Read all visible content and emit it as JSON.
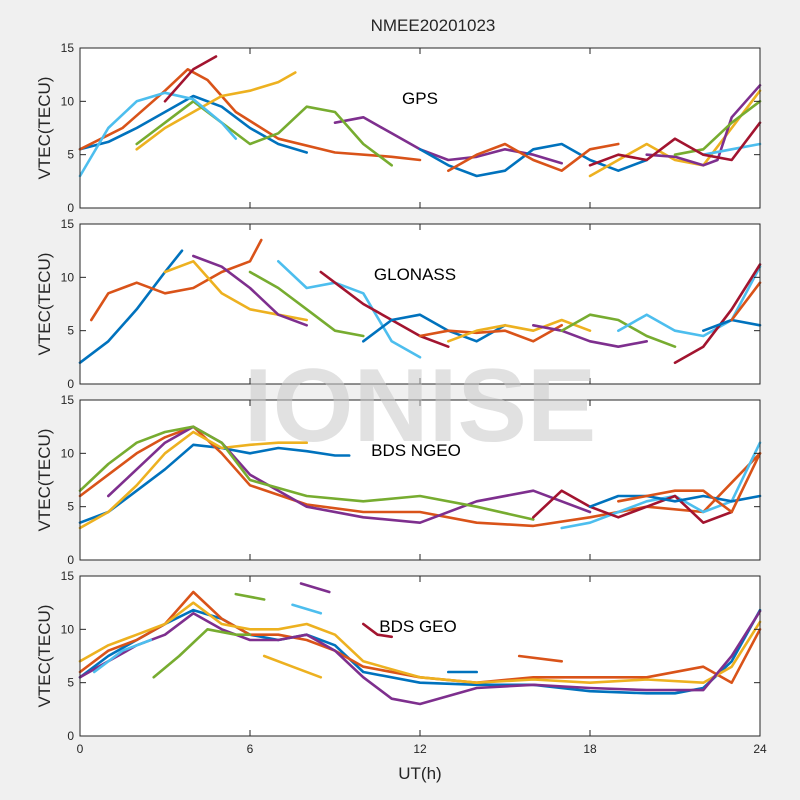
{
  "figure": {
    "title": "NMEE20201023",
    "watermark": "IONISE",
    "xlabel": "UT(h)",
    "colors": [
      "#0072BD",
      "#D95319",
      "#EDB120",
      "#7E2F8E",
      "#77AC30",
      "#4DBEEE",
      "#A2142F"
    ]
  },
  "chart_data": [
    {
      "type": "line",
      "title": "GPS",
      "xlabel": "UT(h)",
      "ylabel": "VTEC(TECU)",
      "xlim": [
        0,
        24
      ],
      "ylim": [
        0,
        15
      ],
      "xticks": [
        0,
        6,
        12,
        18,
        24
      ],
      "yticks": [
        0,
        5,
        10,
        15
      ],
      "series": [
        {
          "x": [
            0,
            1,
            2,
            3,
            4,
            5,
            6,
            7,
            8
          ],
          "y": [
            5.5,
            6.2,
            7.5,
            9.0,
            10.5,
            9.5,
            7.5,
            6.0,
            5.2
          ]
        },
        {
          "x": [
            0,
            1.5,
            3,
            3.8,
            4.5,
            5.5,
            7,
            9,
            11,
            12
          ],
          "y": [
            5.5,
            7.5,
            11.0,
            13.0,
            12.0,
            9.0,
            6.5,
            5.2,
            4.8,
            4.5
          ]
        },
        {
          "x": [
            2,
            3,
            4,
            5,
            6,
            7,
            7.6
          ],
          "y": [
            5.5,
            7.5,
            9.0,
            10.5,
            11.0,
            11.8,
            12.7
          ]
        },
        {
          "x": [
            9,
            10,
            11,
            12,
            13,
            14,
            15,
            16,
            17
          ],
          "y": [
            8.0,
            8.5,
            7.0,
            5.5,
            4.5,
            4.8,
            5.5,
            5.0,
            4.2
          ]
        },
        {
          "x": [
            2,
            3,
            4,
            5,
            6,
            7,
            8,
            9,
            10,
            11
          ],
          "y": [
            6.0,
            8.0,
            10.0,
            8.0,
            6.0,
            7.0,
            9.5,
            9.0,
            6.0,
            4.0
          ]
        },
        {
          "x": [
            0,
            1,
            2,
            3,
            4,
            5,
            5.5
          ],
          "y": [
            3.0,
            7.5,
            10.0,
            10.8,
            10.2,
            8.0,
            6.5
          ]
        },
        {
          "x": [
            3,
            4,
            4.8
          ],
          "y": [
            10.0,
            13.0,
            14.2
          ]
        },
        {
          "x": [
            12,
            13,
            14,
            15,
            16,
            17,
            18,
            19,
            20
          ],
          "y": [
            5.5,
            4.0,
            3.0,
            3.5,
            5.5,
            6.0,
            4.5,
            3.5,
            4.5
          ]
        },
        {
          "x": [
            13,
            14,
            15,
            16,
            17,
            18,
            19
          ],
          "y": [
            3.5,
            5.0,
            6.0,
            4.5,
            3.5,
            5.5,
            6.0
          ]
        },
        {
          "x": [
            18,
            19,
            20,
            21,
            22,
            23,
            24
          ],
          "y": [
            3.0,
            4.5,
            6.0,
            4.5,
            4.0,
            7.5,
            11.0
          ]
        },
        {
          "x": [
            20,
            21,
            22,
            22.5,
            23,
            24
          ],
          "y": [
            5.0,
            4.8,
            4.0,
            4.5,
            8.5,
            11.5
          ]
        },
        {
          "x": [
            21,
            22,
            23,
            24
          ],
          "y": [
            5.0,
            5.5,
            8.0,
            10.0
          ]
        },
        {
          "x": [
            22,
            23,
            24
          ],
          "y": [
            5.0,
            5.5,
            6.0
          ]
        },
        {
          "x": [
            18,
            19,
            20,
            21,
            22,
            23,
            24
          ],
          "y": [
            4.0,
            5.0,
            4.5,
            6.5,
            5.0,
            4.5,
            8.0
          ]
        }
      ]
    },
    {
      "type": "line",
      "title": "GLONASS",
      "xlabel": "UT(h)",
      "ylabel": "VTEC(TECU)",
      "xlim": [
        0,
        24
      ],
      "ylim": [
        0,
        15
      ],
      "xticks": [
        0,
        6,
        12,
        18,
        24
      ],
      "yticks": [
        0,
        5,
        10,
        15
      ],
      "series": [
        {
          "x": [
            0,
            1,
            2,
            3,
            3.6
          ],
          "y": [
            2.0,
            4.0,
            7.0,
            10.5,
            12.5
          ]
        },
        {
          "x": [
            0.4,
            1,
            2,
            3,
            4,
            5,
            6,
            6.4
          ],
          "y": [
            6.0,
            8.5,
            9.5,
            8.5,
            9.0,
            10.5,
            11.5,
            13.5
          ]
        },
        {
          "x": [
            3,
            4,
            5,
            6,
            7,
            8
          ],
          "y": [
            10.5,
            11.5,
            8.5,
            7.0,
            6.5,
            6.0
          ]
        },
        {
          "x": [
            4,
            5,
            6,
            7,
            8
          ],
          "y": [
            12.0,
            11.0,
            9.0,
            6.5,
            5.5
          ]
        },
        {
          "x": [
            6,
            7,
            8,
            9,
            10
          ],
          "y": [
            10.5,
            9.0,
            7.0,
            5.0,
            4.5
          ]
        },
        {
          "x": [
            7,
            8,
            9,
            10,
            11,
            12
          ],
          "y": [
            11.5,
            9.0,
            9.5,
            8.5,
            4.0,
            2.5
          ]
        },
        {
          "x": [
            8.5,
            9,
            10,
            11,
            12,
            13
          ],
          "y": [
            10.5,
            9.5,
            7.5,
            6.0,
            4.5,
            3.5
          ]
        },
        {
          "x": [
            10,
            11,
            12,
            13,
            14,
            15
          ],
          "y": [
            4.0,
            6.0,
            6.5,
            5.0,
            4.0,
            5.5
          ]
        },
        {
          "x": [
            12,
            13,
            14,
            15,
            16,
            17
          ],
          "y": [
            4.5,
            5.0,
            4.8,
            5.0,
            4.0,
            5.5
          ]
        },
        {
          "x": [
            13,
            14,
            15,
            16,
            17,
            18
          ],
          "y": [
            4.0,
            5.0,
            5.5,
            5.0,
            6.0,
            5.0
          ]
        },
        {
          "x": [
            16,
            17,
            18,
            19,
            20
          ],
          "y": [
            5.5,
            5.0,
            4.0,
            3.5,
            4.0
          ]
        },
        {
          "x": [
            17,
            18,
            19,
            20,
            21
          ],
          "y": [
            5.0,
            6.5,
            6.0,
            4.5,
            3.5
          ]
        },
        {
          "x": [
            19,
            20,
            21,
            22,
            23,
            24
          ],
          "y": [
            5.0,
            6.5,
            5.0,
            4.5,
            6.0,
            11.0
          ]
        },
        {
          "x": [
            21,
            22,
            23,
            24
          ],
          "y": [
            2.0,
            3.5,
            7.0,
            11.2
          ]
        },
        {
          "x": [
            22,
            23,
            24
          ],
          "y": [
            5.0,
            6.0,
            5.5
          ]
        },
        {
          "x": [
            23,
            24
          ],
          "y": [
            6.0,
            9.5
          ]
        }
      ]
    },
    {
      "type": "line",
      "title": "BDS NGEO",
      "xlabel": "UT(h)",
      "ylabel": "VTEC(TECU)",
      "xlim": [
        0,
        24
      ],
      "ylim": [
        0,
        15
      ],
      "xticks": [
        0,
        6,
        12,
        18,
        24
      ],
      "yticks": [
        0,
        5,
        10,
        15
      ],
      "series": [
        {
          "x": [
            0,
            1,
            2,
            3,
            4,
            5,
            6,
            7,
            8,
            9,
            9.5
          ],
          "y": [
            3.5,
            4.5,
            6.5,
            8.5,
            10.8,
            10.5,
            10.0,
            10.5,
            10.2,
            9.8,
            9.8
          ]
        },
        {
          "x": [
            0,
            1,
            2,
            3,
            4,
            5,
            6,
            8,
            10,
            12,
            14,
            16,
            18,
            20,
            22,
            24
          ],
          "y": [
            6.0,
            8.0,
            10.0,
            11.5,
            12.5,
            10.0,
            7.0,
            5.2,
            4.5,
            4.5,
            3.5,
            3.2,
            4.0,
            5.0,
            4.5,
            10.0
          ]
        },
        {
          "x": [
            0,
            1,
            2,
            3,
            4,
            5,
            6,
            7,
            8
          ],
          "y": [
            3.0,
            4.5,
            7.0,
            10.0,
            12.0,
            10.5,
            10.8,
            11.0,
            11.0
          ]
        },
        {
          "x": [
            1,
            2,
            3,
            4,
            5,
            6,
            8,
            10,
            12,
            14,
            16,
            18
          ],
          "y": [
            6.0,
            8.5,
            11.0,
            12.5,
            11.0,
            8.0,
            5.0,
            4.0,
            3.5,
            5.5,
            6.5,
            4.5
          ]
        },
        {
          "x": [
            0,
            1,
            2,
            3,
            4,
            5,
            6,
            8,
            10,
            12,
            14,
            16
          ],
          "y": [
            6.5,
            9.0,
            11.0,
            12.0,
            12.5,
            11.0,
            7.5,
            6.0,
            5.5,
            6.0,
            5.0,
            3.8
          ]
        },
        {
          "x": [
            17,
            18,
            19,
            20,
            21,
            22,
            23,
            24
          ],
          "y": [
            3.0,
            3.5,
            4.5,
            5.5,
            6.0,
            4.5,
            5.5,
            11.0
          ]
        },
        {
          "x": [
            16,
            17,
            18,
            19,
            20,
            21,
            22,
            23
          ],
          "y": [
            4.0,
            6.5,
            5.0,
            4.0,
            5.0,
            6.0,
            3.5,
            4.5
          ]
        },
        {
          "x": [
            18,
            19,
            20,
            21,
            22,
            23,
            24
          ],
          "y": [
            5.0,
            6.0,
            6.0,
            5.5,
            6.0,
            5.5,
            6.0
          ]
        },
        {
          "x": [
            19,
            20,
            21,
            22,
            23,
            24
          ],
          "y": [
            5.5,
            6.0,
            6.5,
            6.5,
            4.5,
            10.0
          ]
        }
      ]
    },
    {
      "type": "line",
      "title": "BDS GEO",
      "xlabel": "UT(h)",
      "ylabel": "VTEC(TECU)",
      "xlim": [
        0,
        24
      ],
      "ylim": [
        0,
        15
      ],
      "xticks": [
        0,
        6,
        12,
        18,
        24
      ],
      "yticks": [
        0,
        5,
        10,
        15
      ],
      "series": [
        {
          "x": [
            0,
            1,
            2,
            3,
            4,
            5,
            6,
            7,
            8,
            9,
            10,
            12,
            14,
            16,
            18,
            20,
            21,
            22,
            23,
            24
          ],
          "y": [
            5.5,
            7.5,
            9.0,
            10.5,
            11.8,
            11.0,
            9.5,
            9.0,
            9.5,
            8.5,
            6.0,
            5.0,
            4.8,
            4.8,
            4.2,
            4.0,
            4.0,
            4.5,
            7.0,
            11.8
          ]
        },
        {
          "x": [
            0,
            1,
            2,
            3,
            4,
            5,
            6,
            7,
            8,
            9,
            10,
            12,
            14,
            16,
            18,
            20,
            22,
            23,
            24
          ],
          "y": [
            6.0,
            8.0,
            9.0,
            10.5,
            13.5,
            11.0,
            9.5,
            9.5,
            9.0,
            8.0,
            6.5,
            5.5,
            5.0,
            5.5,
            5.5,
            5.5,
            6.5,
            5.0,
            10.0
          ]
        },
        {
          "x": [
            0,
            1,
            2,
            3,
            4,
            5,
            6,
            7,
            8,
            9,
            10,
            12,
            14,
            16,
            18,
            20,
            22,
            23,
            24
          ],
          "y": [
            7.0,
            8.5,
            9.5,
            10.5,
            12.5,
            10.5,
            10.0,
            10.0,
            10.5,
            9.5,
            7.0,
            5.5,
            5.0,
            5.3,
            5.0,
            5.3,
            5.0,
            6.5,
            10.7
          ]
        },
        {
          "x": [
            0,
            1,
            2,
            3,
            4,
            5,
            6,
            7,
            8,
            9,
            10,
            11,
            12,
            14,
            16,
            18,
            20,
            22,
            23,
            24
          ],
          "y": [
            5.5,
            7.0,
            8.5,
            9.5,
            11.5,
            10.0,
            9.0,
            9.0,
            9.5,
            8.0,
            5.5,
            3.5,
            3.0,
            4.5,
            4.8,
            4.5,
            4.3,
            4.3,
            7.5,
            11.7
          ]
        },
        {
          "x": [
            2.6,
            3.5,
            4.5,
            5.5,
            6.0
          ],
          "y": [
            5.5,
            7.5,
            10.0,
            9.5,
            9.5
          ]
        },
        {
          "x": [
            0.5,
            1.5,
            2.5
          ],
          "y": [
            6.0,
            8.0,
            9.0
          ]
        },
        {
          "x": [
            10,
            10.5,
            11
          ],
          "y": [
            10.5,
            9.5,
            9.3
          ]
        },
        {
          "x": [
            13,
            14
          ],
          "y": [
            6.0,
            6.0
          ]
        },
        {
          "x": [
            15.5,
            17
          ],
          "y": [
            7.5,
            7.0
          ]
        },
        {
          "x": [
            6.5,
            7.5,
            8.5
          ],
          "y": [
            7.5,
            6.5,
            5.5
          ]
        },
        {
          "x": [
            7.8,
            8.8
          ],
          "y": [
            14.3,
            13.5
          ]
        },
        {
          "x": [
            5.5,
            6.5
          ],
          "y": [
            13.3,
            12.8
          ]
        },
        {
          "x": [
            7.5,
            8.5
          ],
          "y": [
            12.3,
            11.5
          ]
        }
      ]
    }
  ]
}
